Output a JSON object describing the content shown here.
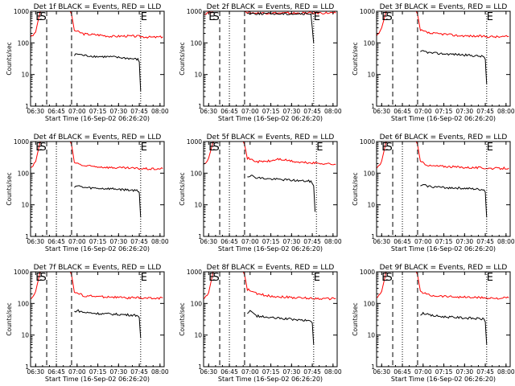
{
  "chart_data": {
    "type": "line",
    "layout": "3x3 grid of panels",
    "common": {
      "xlabel": "Start Time (16-Sep-02 06:26:20)",
      "ylabel": "Counts/sec",
      "x_ticks": [
        "06:30",
        "06:45",
        "07:00",
        "07:15",
        "07:30",
        "07:45",
        "08:00"
      ],
      "x_range": [
        "06:26:20",
        "08:03:00"
      ],
      "y_scale": "log",
      "y_range": [
        1,
        1000
      ],
      "y_ticks": [
        "1",
        "10",
        "100",
        "1000"
      ],
      "colors": {
        "events": "#000000",
        "lld": "#ff0000",
        "axes": "#000000"
      }
    },
    "panels": [
      {
        "title": "Det 1f BLACK = Events, RED = LLD",
        "markers": [
          {
            "label": "E",
            "time": "06:30"
          },
          {
            "label": "S",
            "time": "06:33"
          },
          {
            "label": "E",
            "time": "07:46"
          }
        ],
        "dashed_lines": [
          "06:38",
          "06:56"
        ],
        "dotted_lines": [
          "07:46"
        ],
        "series": [
          {
            "name": "LLD",
            "color": "#ff0000",
            "x": [
              "06:26",
              "06:28",
              "06:30",
              "06:33",
              "06:34",
              "06:35",
              "06:36",
              "06:37",
              "06:50",
              "06:55",
              "06:56",
              "06:58",
              "07:05",
              "07:15",
              "07:25",
              "07:35",
              "07:45",
              "07:55",
              "08:02"
            ],
            "y": [
              150,
              170,
              220,
              900,
              1000,
              1000,
              1000,
              1000,
              1000,
              1000,
              800,
              250,
              190,
              180,
              160,
              165,
              160,
              150,
              155
            ]
          },
          {
            "name": "Events",
            "color": "#000000",
            "x": [
              "06:58",
              "07:00",
              "07:05",
              "07:15",
              "07:25",
              "07:35",
              "07:44",
              "07:45",
              "07:46"
            ],
            "y": [
              40,
              45,
              40,
              37,
              36,
              33,
              30,
              25,
              3
            ]
          }
        ]
      },
      {
        "title": "Det 2f BLACK = Events, RED = LLD",
        "markers": [
          {
            "label": "E",
            "time": "06:30"
          },
          {
            "label": "S",
            "time": "06:33"
          },
          {
            "label": "E",
            "time": "07:46"
          }
        ],
        "dashed_lines": [
          "06:38",
          "06:56"
        ],
        "dotted_lines": [
          "06:45",
          "07:46"
        ],
        "series": [
          {
            "name": "LLD",
            "color": "#ff0000",
            "x": [
              "06:26",
              "06:28",
              "06:30",
              "06:33",
              "06:34",
              "06:35",
              "06:36",
              "06:37",
              "06:50",
              "06:55",
              "06:56",
              "06:58",
              "07:05",
              "07:15",
              "07:25",
              "07:35",
              "07:45",
              "07:55",
              "08:02"
            ],
            "y": [
              800,
              850,
              900,
              1000,
              1000,
              1000,
              1000,
              1000,
              1000,
              1000,
              1000,
              900,
              880,
              880,
              870,
              870,
              880,
              880,
              880
            ]
          },
          {
            "name": "Events",
            "color": "#000000",
            "x": [
              "06:58",
              "07:00",
              "07:15",
              "07:30",
              "07:44",
              "07:45",
              "07:46"
            ],
            "y": [
              870,
              850,
              840,
              830,
              820,
              300,
              100
            ]
          }
        ]
      },
      {
        "title": "Det 3f BLACK = Events, RED = LLD",
        "markers": [
          {
            "label": "E",
            "time": "06:30"
          },
          {
            "label": "S",
            "time": "06:33"
          },
          {
            "label": "E",
            "time": "07:46"
          }
        ],
        "dashed_lines": [
          "06:38",
          "06:56"
        ],
        "dotted_lines": [
          "07:46"
        ],
        "series": [
          {
            "name": "LLD",
            "color": "#ff0000",
            "x": [
              "06:26",
              "06:28",
              "06:30",
              "06:33",
              "06:34",
              "06:35",
              "06:36",
              "06:37",
              "06:50",
              "06:55",
              "06:56",
              "06:58",
              "07:05",
              "07:15",
              "07:25",
              "07:35",
              "07:45",
              "07:55",
              "08:02"
            ],
            "y": [
              150,
              200,
              300,
              900,
              1000,
              1000,
              1000,
              1000,
              1000,
              1000,
              800,
              250,
              200,
              190,
              170,
              165,
              160,
              155,
              160
            ]
          },
          {
            "name": "Events",
            "color": "#000000",
            "x": [
              "06:58",
              "07:00",
              "07:05",
              "07:15",
              "07:25",
              "07:35",
              "07:44",
              "07:45",
              "07:46"
            ],
            "y": [
              50,
              55,
              48,
              45,
              43,
              40,
              37,
              30,
              5
            ]
          }
        ]
      },
      {
        "title": "Det 4f BLACK = Events, RED = LLD",
        "markers": [
          {
            "label": "E",
            "time": "06:30"
          },
          {
            "label": "S",
            "time": "06:33"
          },
          {
            "label": "E",
            "time": "07:46"
          }
        ],
        "dashed_lines": [
          "06:38",
          "06:56"
        ],
        "dotted_lines": [
          "06:45",
          "07:46"
        ],
        "series": [
          {
            "name": "LLD",
            "color": "#ff0000",
            "x": [
              "06:26",
              "06:28",
              "06:30",
              "06:33",
              "06:34",
              "06:35",
              "06:36",
              "06:37",
              "06:50",
              "06:55",
              "06:56",
              "06:58",
              "07:05",
              "07:15",
              "07:25",
              "07:35",
              "07:45",
              "07:55",
              "08:02"
            ],
            "y": [
              140,
              170,
              230,
              900,
              1000,
              1000,
              1000,
              1000,
              1000,
              1000,
              800,
              220,
              170,
              160,
              150,
              145,
              140,
              135,
              140
            ]
          },
          {
            "name": "Events",
            "color": "#000000",
            "x": [
              "06:58",
              "07:00",
              "07:05",
              "07:15",
              "07:25",
              "07:35",
              "07:44",
              "07:45",
              "07:46"
            ],
            "y": [
              38,
              40,
              35,
              33,
              32,
              30,
              28,
              24,
              4
            ]
          }
        ]
      },
      {
        "title": "Det 5f BLACK = Events, RED = LLD",
        "markers": [
          {
            "label": "E",
            "time": "06:30"
          },
          {
            "label": "S",
            "time": "06:33"
          },
          {
            "label": "E",
            "time": "07:48"
          }
        ],
        "dashed_lines": [
          "06:38",
          "06:56"
        ],
        "dotted_lines": [
          "06:45",
          "07:48"
        ],
        "series": [
          {
            "name": "LLD",
            "color": "#ff0000",
            "x": [
              "06:26",
              "06:28",
              "06:30",
              "06:33",
              "06:34",
              "06:35",
              "06:36",
              "06:37",
              "06:50",
              "06:55",
              "06:56",
              "06:58",
              "07:05",
              "07:15",
              "07:20",
              "07:25",
              "07:35",
              "07:45",
              "07:55",
              "08:02"
            ],
            "y": [
              200,
              230,
              300,
              900,
              1000,
              1000,
              1000,
              1000,
              1000,
              1000,
              800,
              300,
              230,
              240,
              280,
              260,
              220,
              210,
              200,
              190
            ]
          },
          {
            "name": "Events",
            "color": "#000000",
            "x": [
              "06:58",
              "07:00",
              "07:05",
              "07:15",
              "07:25",
              "07:35",
              "07:44",
              "07:46",
              "07:47"
            ],
            "y": [
              80,
              85,
              72,
              65,
              62,
              58,
              55,
              40,
              6
            ]
          }
        ]
      },
      {
        "title": "Det 6f BLACK = Events, RED = LLD",
        "markers": [
          {
            "label": "E",
            "time": "06:30"
          },
          {
            "label": "S",
            "time": "06:33"
          },
          {
            "label": "E",
            "time": "07:46"
          }
        ],
        "dashed_lines": [
          "06:38",
          "06:56"
        ],
        "dotted_lines": [
          "06:45",
          "07:46"
        ],
        "series": [
          {
            "name": "LLD",
            "color": "#ff0000",
            "x": [
              "06:26",
              "06:28",
              "06:30",
              "06:33",
              "06:34",
              "06:35",
              "06:36",
              "06:37",
              "06:50",
              "06:55",
              "06:56",
              "06:58",
              "07:05",
              "07:15",
              "07:25",
              "07:35",
              "07:45",
              "07:55",
              "08:02"
            ],
            "y": [
              140,
              170,
              240,
              900,
              1000,
              1000,
              1000,
              1000,
              1000,
              1000,
              800,
              230,
              170,
              165,
              155,
              150,
              145,
              140,
              145
            ]
          },
          {
            "name": "Events",
            "color": "#000000",
            "x": [
              "06:58",
              "07:00",
              "07:05",
              "07:15",
              "07:25",
              "07:35",
              "07:44",
              "07:45",
              "07:46"
            ],
            "y": [
              40,
              42,
              38,
              35,
              34,
              32,
              30,
              25,
              4
            ]
          }
        ]
      },
      {
        "title": "Det 7f BLACK = Events, RED = LLD",
        "markers": [
          {
            "label": "E",
            "time": "06:30"
          },
          {
            "label": "S",
            "time": "06:33"
          },
          {
            "label": "E",
            "time": "07:46"
          }
        ],
        "dashed_lines": [
          "06:38",
          "06:56"
        ],
        "dotted_lines": [
          "06:45",
          "07:46"
        ],
        "series": [
          {
            "name": "LLD",
            "color": "#ff0000",
            "x": [
              "06:26",
              "06:28",
              "06:30",
              "06:33",
              "06:34",
              "06:35",
              "06:36",
              "06:37",
              "06:50",
              "06:55",
              "06:56",
              "06:58",
              "07:05",
              "07:15",
              "07:25",
              "07:35",
              "07:45",
              "07:55",
              "08:02"
            ],
            "y": [
              140,
              170,
              240,
              900,
              1000,
              1000,
              1000,
              1000,
              1000,
              1000,
              800,
              230,
              175,
              165,
              160,
              150,
              150,
              145,
              150
            ]
          },
          {
            "name": "Events",
            "color": "#000000",
            "x": [
              "06:58",
              "07:00",
              "07:05",
              "07:15",
              "07:25",
              "07:35",
              "07:44",
              "07:45",
              "07:46"
            ],
            "y": [
              55,
              60,
              52,
              48,
              46,
              44,
              42,
              35,
              8
            ]
          }
        ]
      },
      {
        "title": "Det 8f BLACK = Events, RED = LLD",
        "markers": [
          {
            "label": "E",
            "time": "06:30"
          },
          {
            "label": "S",
            "time": "06:33"
          },
          {
            "label": "E",
            "time": "07:46"
          }
        ],
        "dashed_lines": [
          "06:38",
          "06:56"
        ],
        "dotted_lines": [
          "06:45",
          "07:46"
        ],
        "series": [
          {
            "name": "LLD",
            "color": "#ff0000",
            "x": [
              "06:26",
              "06:28",
              "06:30",
              "06:33",
              "06:34",
              "06:35",
              "06:36",
              "06:37",
              "06:50",
              "06:55",
              "06:56",
              "06:58",
              "07:05",
              "07:15",
              "07:25",
              "07:35",
              "07:45",
              "07:55",
              "08:02"
            ],
            "y": [
              130,
              160,
              220,
              900,
              1000,
              1000,
              1000,
              1000,
              1000,
              1000,
              800,
              280,
              200,
              170,
              160,
              150,
              145,
              140,
              145
            ]
          },
          {
            "name": "Events",
            "color": "#000000",
            "x": [
              "06:58",
              "07:00",
              "07:05",
              "07:15",
              "07:25",
              "07:35",
              "07:44",
              "07:45",
              "07:46"
            ],
            "y": [
              45,
              60,
              40,
              35,
              33,
              30,
              28,
              24,
              5
            ]
          }
        ]
      },
      {
        "title": "Det 9f BLACK = Events, RED = LLD",
        "markers": [
          {
            "label": "E",
            "time": "06:30"
          },
          {
            "label": "S",
            "time": "06:33"
          },
          {
            "label": "E",
            "time": "07:46"
          }
        ],
        "dashed_lines": [
          "06:38",
          "06:56"
        ],
        "dotted_lines": [
          "06:45",
          "07:46"
        ],
        "series": [
          {
            "name": "LLD",
            "color": "#ff0000",
            "x": [
              "06:26",
              "06:28",
              "06:30",
              "06:33",
              "06:34",
              "06:35",
              "06:36",
              "06:37",
              "06:50",
              "06:55",
              "06:56",
              "06:58",
              "07:05",
              "07:15",
              "07:25",
              "07:35",
              "07:45",
              "07:55",
              "08:02"
            ],
            "y": [
              150,
              180,
              240,
              900,
              1000,
              1000,
              1000,
              1000,
              1000,
              1000,
              800,
              240,
              180,
              170,
              160,
              155,
              150,
              145,
              150
            ]
          },
          {
            "name": "Events",
            "color": "#000000",
            "x": [
              "06:58",
              "07:00",
              "07:05",
              "07:15",
              "07:25",
              "07:35",
              "07:44",
              "07:45",
              "07:46"
            ],
            "y": [
              45,
              50,
              42,
              38,
              36,
              34,
              32,
              26,
              5
            ]
          }
        ]
      }
    ]
  }
}
